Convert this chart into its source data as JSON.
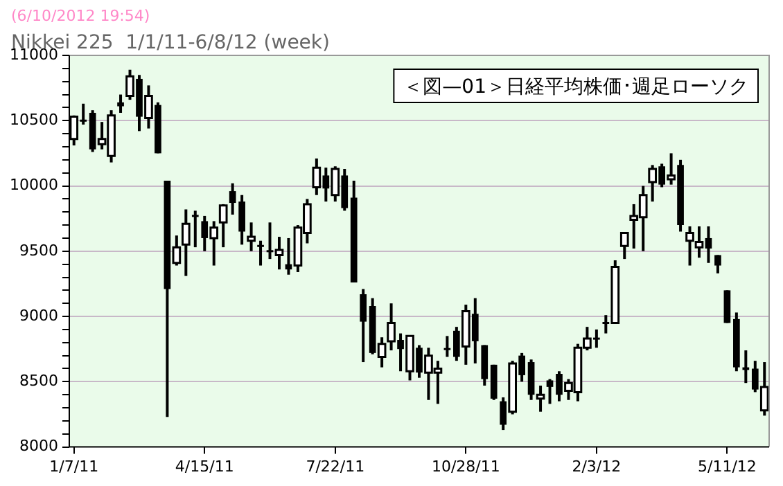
{
  "chart_data": {
    "type": "candlestick",
    "title": "Nikkei 225  1/1/11-6/8/12 (week)",
    "subtitle": "(6/10/2012 19:54)",
    "annotations": [
      "＜図—01＞日経平均株価･週足ローソク"
    ],
    "color": "#000000",
    "colors": [
      "#ffffff",
      "#000000",
      "#000000",
      "#ffffff",
      "#ffffff",
      "#000000",
      "#ffffff",
      "#000000",
      "#ffffff",
      "#000000",
      "#000000",
      "#ffffff",
      "#ffffff",
      "#000000",
      "#000000",
      "#ffffff",
      "#ffffff",
      "#000000",
      "#000000",
      "#ffffff",
      "#000000",
      "#000000",
      "#ffffff",
      "#000000",
      "#ffffff",
      "#ffffff",
      "#ffffff",
      "#000000",
      "#ffffff",
      "#000000",
      "#000000",
      "#000000",
      "#000000",
      "#ffffff",
      "#ffffff",
      "#000000",
      "#ffffff",
      "#000000",
      "#ffffff",
      "#ffffff",
      "#000000",
      "#000000",
      "#ffffff",
      "#000000",
      "#000000",
      "#000000",
      "#000000",
      "#ffffff",
      "#000000",
      "#000000",
      "#ffffff",
      "#000000",
      "#000000",
      "#ffffff",
      "#ffffff",
      "#ffffff",
      "#000000",
      "#000000",
      "#ffffff",
      "#ffffff",
      "#ffffff",
      "#ffffff",
      "#ffffff",
      "#000000",
      "#ffffff",
      "#000000",
      "#ffffff",
      "#ffffff",
      "#000000",
      "#000000",
      "#000000",
      "#000000",
      "#000000",
      "#000000",
      "#ffffff"
    ],
    "categories": [
      "1/7/11",
      null,
      null,
      null,
      null,
      null,
      null,
      null,
      null,
      null,
      null,
      null,
      null,
      null,
      "4/15/11",
      null,
      null,
      null,
      null,
      null,
      null,
      null,
      null,
      null,
      null,
      null,
      null,
      null,
      "7/22/11",
      null,
      null,
      null,
      null,
      null,
      null,
      null,
      null,
      null,
      null,
      null,
      null,
      null,
      "10/28/11",
      null,
      null,
      null,
      null,
      null,
      null,
      null,
      null,
      null,
      null,
      null,
      null,
      null,
      "2/3/12",
      null,
      null,
      null,
      null,
      null,
      null,
      null,
      null,
      null,
      null,
      null,
      null,
      null,
      "5/11/12",
      null,
      null,
      null,
      null
    ],
    "ohlc": [
      [
        10360,
        10540,
        10310,
        10530
      ],
      [
        10500,
        10630,
        10470,
        10500
      ],
      [
        10560,
        10580,
        10260,
        10280
      ],
      [
        10320,
        10490,
        10280,
        10360
      ],
      [
        10230,
        10580,
        10180,
        10540
      ],
      [
        10640,
        10700,
        10560,
        10610
      ],
      [
        10690,
        10890,
        10660,
        10840
      ],
      [
        10820,
        10850,
        10420,
        10530
      ],
      [
        10520,
        10770,
        10440,
        10690
      ],
      [
        10620,
        10640,
        10250,
        10250
      ],
      [
        10040,
        10040,
        8230,
        9210
      ],
      [
        9410,
        9620,
        9390,
        9530
      ],
      [
        9550,
        9820,
        9310,
        9710
      ],
      [
        9770,
        9810,
        9530,
        9770
      ],
      [
        9730,
        9770,
        9500,
        9600
      ],
      [
        9600,
        9730,
        9390,
        9680
      ],
      [
        9720,
        9860,
        9530,
        9850
      ],
      [
        9960,
        10020,
        9780,
        9870
      ],
      [
        9880,
        9930,
        9550,
        9650
      ],
      [
        9580,
        9720,
        9500,
        9610
      ],
      [
        9540,
        9580,
        9390,
        9540
      ],
      [
        9500,
        9720,
        9440,
        9500
      ],
      [
        9470,
        9610,
        9360,
        9510
      ],
      [
        9400,
        9600,
        9320,
        9360
      ],
      [
        9390,
        9700,
        9340,
        9680
      ],
      [
        9640,
        9900,
        9560,
        9860
      ],
      [
        9990,
        10210,
        9930,
        10140
      ],
      [
        10080,
        10140,
        9880,
        9980
      ],
      [
        9930,
        10150,
        9880,
        10130
      ],
      [
        10080,
        10130,
        9810,
        9830
      ],
      [
        9910,
        10040,
        9260,
        9260
      ],
      [
        9170,
        9210,
        8650,
        8960
      ],
      [
        9080,
        9140,
        8710,
        8720
      ],
      [
        8690,
        8840,
        8610,
        8790
      ],
      [
        8810,
        9100,
        8740,
        8950
      ],
      [
        8820,
        8870,
        8580,
        8750
      ],
      [
        8580,
        8850,
        8510,
        8850
      ],
      [
        8760,
        8780,
        8530,
        8570
      ],
      [
        8570,
        8760,
        8360,
        8700
      ],
      [
        8570,
        8660,
        8330,
        8600
      ],
      [
        8750,
        8850,
        8690,
        8750
      ],
      [
        8890,
        8920,
        8660,
        8690
      ],
      [
        8770,
        9090,
        8630,
        9040
      ],
      [
        9020,
        9140,
        8640,
        8810
      ],
      [
        8780,
        8780,
        8470,
        8520
      ],
      [
        8630,
        8630,
        8360,
        8370
      ],
      [
        8350,
        8380,
        8130,
        8170
      ],
      [
        8270,
        8660,
        8250,
        8640
      ],
      [
        8700,
        8720,
        8500,
        8550
      ],
      [
        8650,
        8670,
        8360,
        8400
      ],
      [
        8370,
        8470,
        8270,
        8400
      ],
      [
        8510,
        8520,
        8330,
        8460
      ],
      [
        8560,
        8580,
        8350,
        8400
      ],
      [
        8430,
        8520,
        8360,
        8490
      ],
      [
        8420,
        8790,
        8350,
        8760
      ],
      [
        8760,
        8920,
        8740,
        8830
      ],
      [
        8830,
        8900,
        8760,
        8830
      ],
      [
        8950,
        9010,
        8870,
        8950
      ],
      [
        8950,
        9430,
        8950,
        9380
      ],
      [
        9540,
        9640,
        9440,
        9640
      ],
      [
        9740,
        9860,
        9520,
        9770
      ],
      [
        9760,
        10000,
        9500,
        9930
      ],
      [
        10030,
        10160,
        9880,
        10130
      ],
      [
        10150,
        10170,
        9990,
        10010
      ],
      [
        10050,
        10250,
        10010,
        10080
      ],
      [
        10160,
        10200,
        9650,
        9700
      ],
      [
        9580,
        9690,
        9390,
        9640
      ],
      [
        9530,
        9690,
        9450,
        9570
      ],
      [
        9600,
        9690,
        9410,
        9520
      ],
      [
        9470,
        9470,
        9330,
        9390
      ],
      [
        9200,
        9200,
        8950,
        8950
      ],
      [
        8980,
        9030,
        8580,
        8610
      ],
      [
        8610,
        8740,
        8490,
        8590
      ],
      [
        8600,
        8660,
        8420,
        8440
      ],
      [
        8280,
        8650,
        8240,
        8460
      ]
    ],
    "ylim": [
      8000,
      11000
    ],
    "yticks": [
      8000,
      {
        "value": 8100,
        "label": null
      },
      {
        "value": 8200,
        "label": null
      },
      {
        "value": 8300,
        "label": null
      },
      {
        "value": 8400,
        "label": null
      },
      8500,
      {
        "value": 8600,
        "label": null
      },
      {
        "value": 8700,
        "label": null
      },
      {
        "value": 8800,
        "label": null
      },
      {
        "value": 8900,
        "label": null
      },
      9000,
      {
        "value": 9100,
        "label": null
      },
      {
        "value": 9200,
        "label": null
      },
      {
        "value": 9300,
        "label": null
      },
      {
        "value": 9400,
        "label": null
      },
      9500,
      {
        "value": 9600,
        "label": null
      },
      {
        "value": 9700,
        "label": null
      },
      {
        "value": 9800,
        "label": null
      },
      {
        "value": 9900,
        "label": null
      },
      10000,
      {
        "value": 10100,
        "label": null
      },
      {
        "value": 10200,
        "label": null
      },
      {
        "value": 10300,
        "label": null
      },
      {
        "value": 10400,
        "label": null
      },
      10500,
      {
        "value": 10600,
        "label": null
      },
      {
        "value": 10700,
        "label": null
      },
      {
        "value": 10800,
        "label": null
      },
      {
        "value": 10900,
        "label": null
      },
      11000
    ],
    "grid": "y",
    "legend": false
  }
}
